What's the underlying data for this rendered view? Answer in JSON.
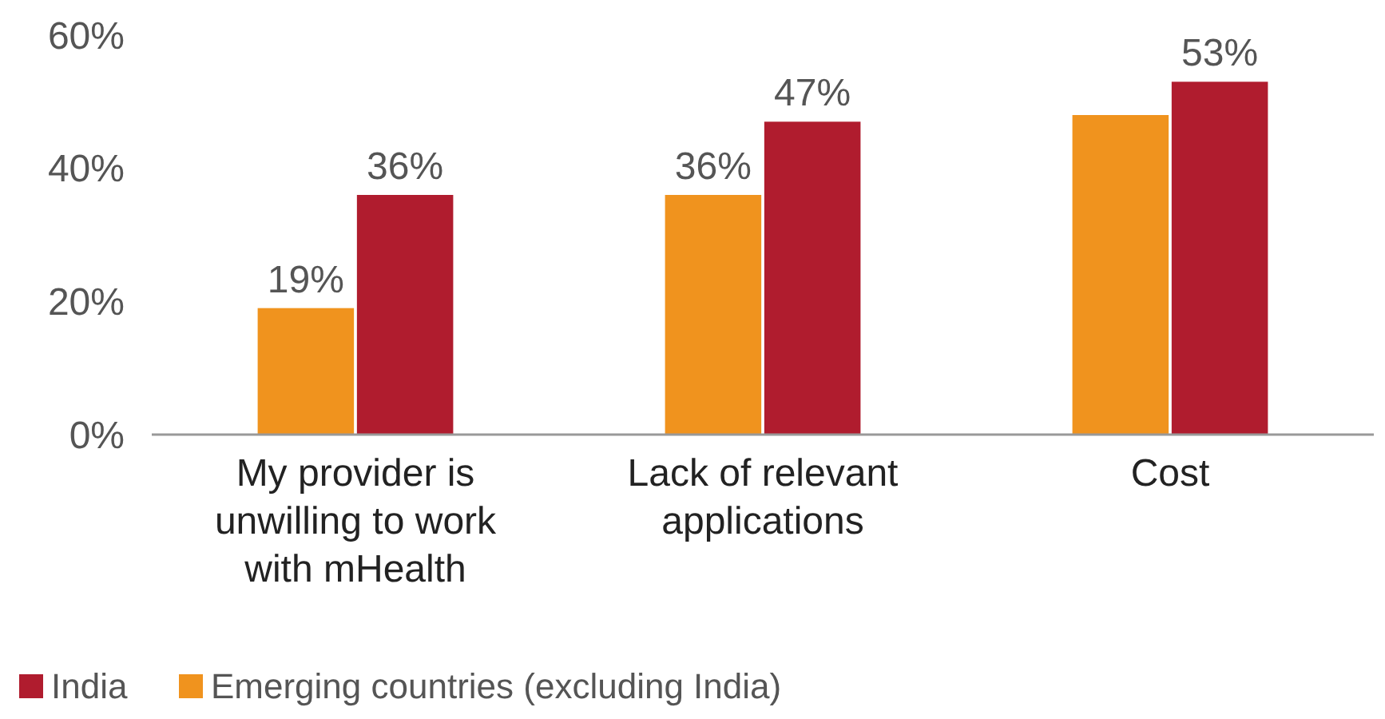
{
  "chart_data": {
    "type": "bar",
    "categories": [
      "My provider is unwilling to work with mHealth",
      "Lack of relevant applications",
      "Cost"
    ],
    "series": [
      {
        "name": "India",
        "color": "#b01c2e",
        "values": [
          36,
          47,
          53
        ],
        "value_labels": [
          "36%",
          "47%",
          "53%"
        ]
      },
      {
        "name": "Emerging countries (excluding India)",
        "color": "#f0931e",
        "values": [
          19,
          36,
          48
        ],
        "value_labels": [
          "19%",
          "36%",
          null
        ]
      }
    ],
    "ylim": [
      0,
      60
    ],
    "yticks": [
      {
        "value": 0,
        "label": "0%"
      },
      {
        "value": 20,
        "label": "20%"
      },
      {
        "value": 40,
        "label": "40%"
      },
      {
        "value": 60,
        "label": "60%"
      }
    ],
    "grid": false,
    "legend": "bottom"
  }
}
